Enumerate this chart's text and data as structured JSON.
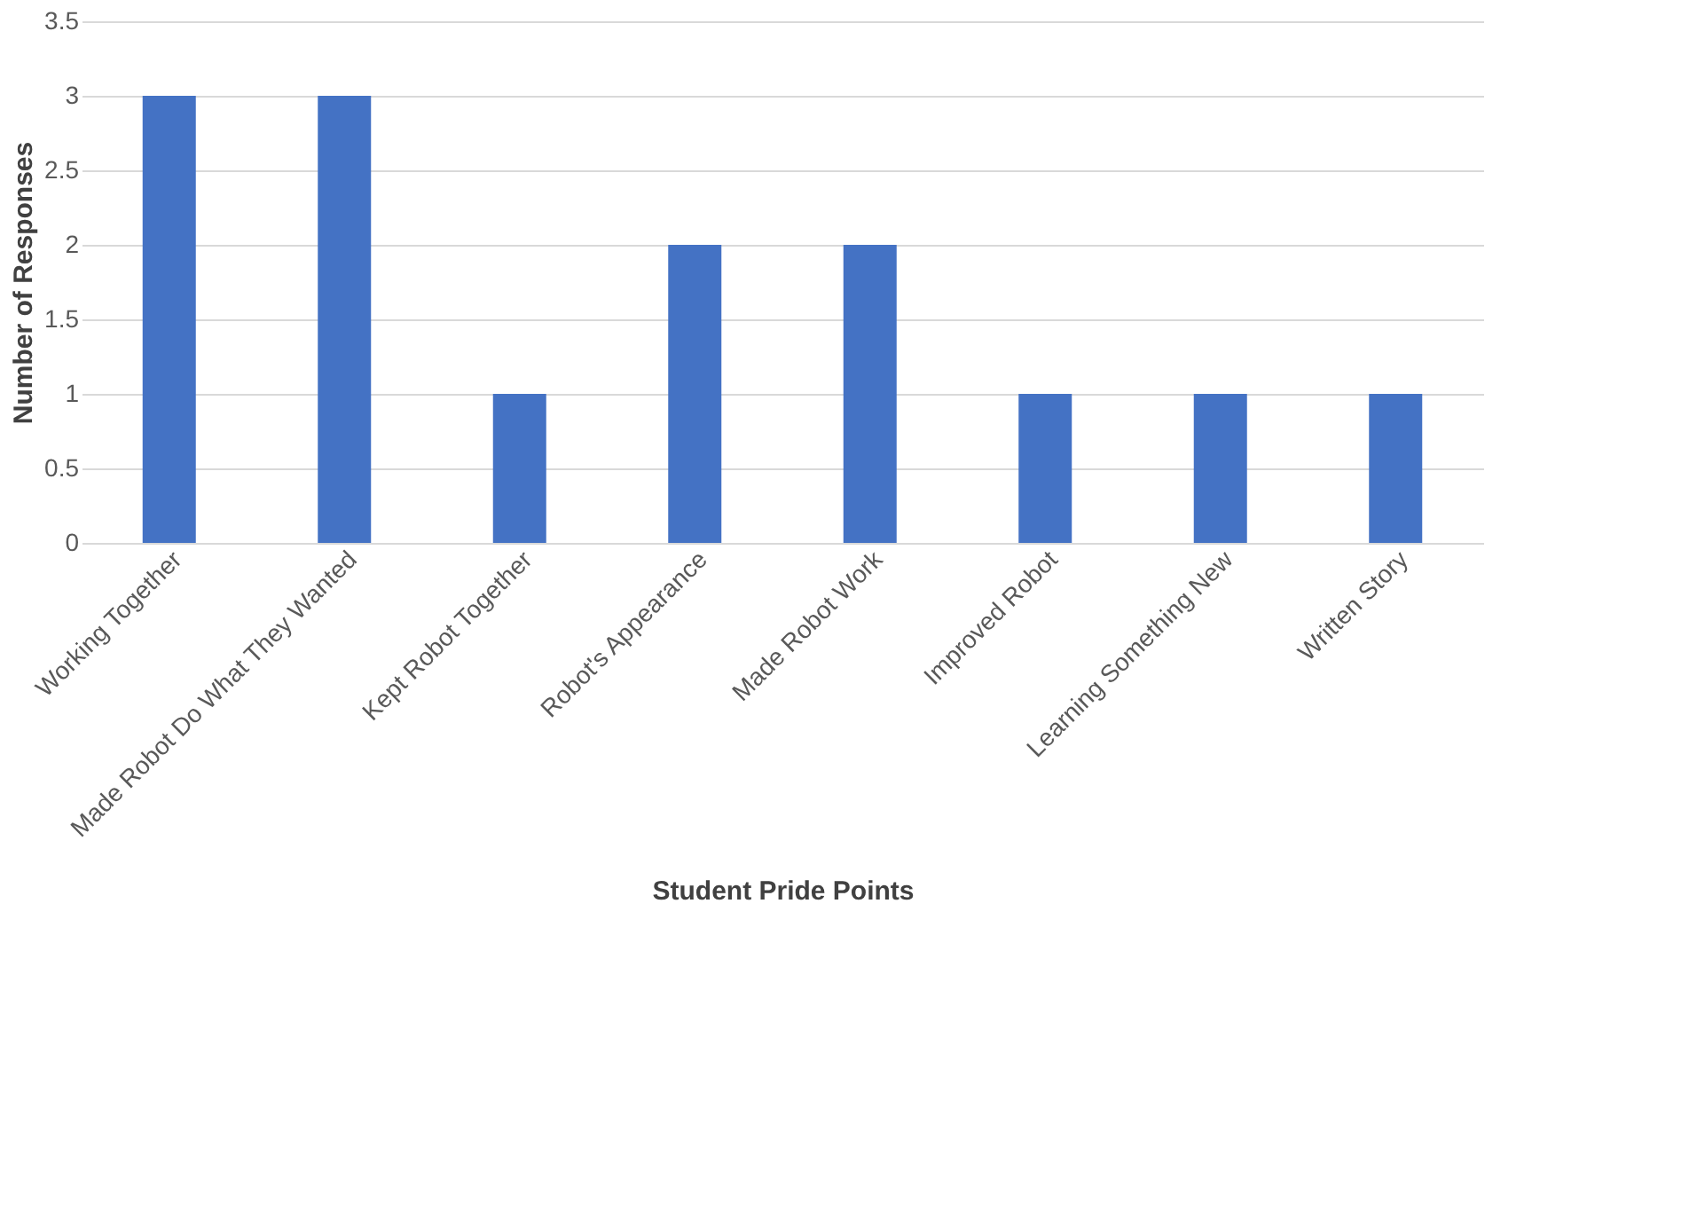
{
  "chart_data": {
    "type": "bar",
    "xlabel": "Student Pride Points",
    "ylabel": "Number of Responses",
    "categories": [
      "Working Together",
      "Made Robot Do What They Wanted",
      "Kept Robot Together",
      "Robot's Appearance",
      "Made Robot Work",
      "Improved Robot",
      "Learning Something New",
      "Written Story"
    ],
    "values": [
      3,
      3,
      1,
      2,
      2,
      1,
      1,
      1
    ],
    "color": "#4472c4",
    "ylim": [
      0,
      3.5
    ],
    "yticks": [
      0,
      0.5,
      1,
      1.5,
      2,
      2.5,
      3,
      3.5
    ],
    "grid": "y"
  }
}
